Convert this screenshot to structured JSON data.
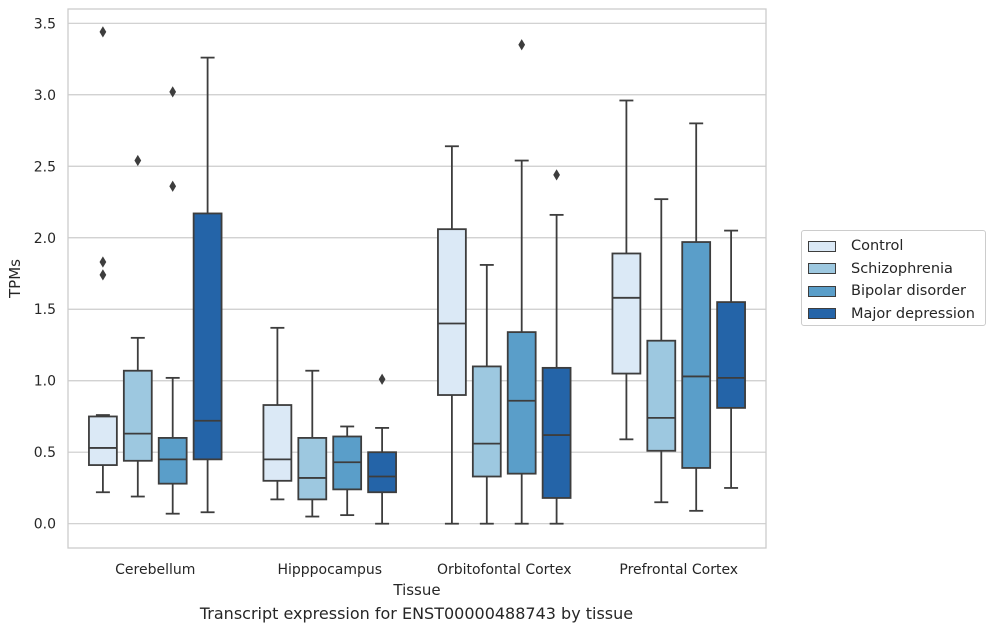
{
  "caption": "Transcript expression for ENST00000488743 by tissue",
  "chart_data": {
    "type": "boxplot",
    "xlabel": "Tissue",
    "ylabel": "TPMs",
    "ylim": [
      -0.17,
      3.6
    ],
    "yticks": [
      "0.0",
      "0.5",
      "1.0",
      "1.5",
      "2.0",
      "2.5",
      "3.0",
      "3.5"
    ],
    "grid": "horizontal",
    "legend_position": "right",
    "categories": [
      "Cerebellum",
      "Hipppocampus",
      "Orbitofontal Cortex",
      "Prefrontal Cortex"
    ],
    "series": [
      {
        "name": "Control",
        "color": "#dbe9f6",
        "boxes": [
          {
            "whislo": 0.22,
            "q1": 0.41,
            "med": 0.53,
            "q3": 0.75,
            "whishi": 0.76,
            "fliers": [
              1.74,
              1.83,
              3.44
            ]
          },
          {
            "whislo": 0.17,
            "q1": 0.3,
            "med": 0.45,
            "q3": 0.83,
            "whishi": 1.37,
            "fliers": []
          },
          {
            "whislo": 0.0,
            "q1": 0.9,
            "med": 1.4,
            "q3": 2.06,
            "whishi": 2.64,
            "fliers": []
          },
          {
            "whislo": 0.59,
            "q1": 1.05,
            "med": 1.58,
            "q3": 1.89,
            "whishi": 2.96,
            "fliers": []
          }
        ]
      },
      {
        "name": "Schizophrenia",
        "color": "#9dc8e0",
        "boxes": [
          {
            "whislo": 0.19,
            "q1": 0.44,
            "med": 0.63,
            "q3": 1.07,
            "whishi": 1.3,
            "fliers": [
              2.54
            ]
          },
          {
            "whislo": 0.05,
            "q1": 0.17,
            "med": 0.32,
            "q3": 0.6,
            "whishi": 1.07,
            "fliers": []
          },
          {
            "whislo": 0.0,
            "q1": 0.33,
            "med": 0.56,
            "q3": 1.1,
            "whishi": 1.81,
            "fliers": []
          },
          {
            "whislo": 0.15,
            "q1": 0.51,
            "med": 0.74,
            "q3": 1.28,
            "whishi": 2.27,
            "fliers": []
          }
        ]
      },
      {
        "name": "Bipolar disorder",
        "color": "#5a9ec9",
        "boxes": [
          {
            "whislo": 0.07,
            "q1": 0.28,
            "med": 0.45,
            "q3": 0.6,
            "whishi": 1.02,
            "fliers": [
              2.36,
              3.02
            ]
          },
          {
            "whislo": 0.06,
            "q1": 0.24,
            "med": 0.43,
            "q3": 0.61,
            "whishi": 0.68,
            "fliers": []
          },
          {
            "whislo": 0.0,
            "q1": 0.35,
            "med": 0.86,
            "q3": 1.34,
            "whishi": 2.54,
            "fliers": [
              3.35
            ]
          },
          {
            "whislo": 0.09,
            "q1": 0.39,
            "med": 1.03,
            "q3": 1.97,
            "whishi": 2.8,
            "fliers": []
          }
        ]
      },
      {
        "name": "Major depression",
        "color": "#2464a8",
        "boxes": [
          {
            "whislo": 0.08,
            "q1": 0.45,
            "med": 0.72,
            "q3": 2.17,
            "whishi": 3.26,
            "fliers": []
          },
          {
            "whislo": 0.0,
            "q1": 0.22,
            "med": 0.33,
            "q3": 0.5,
            "whishi": 0.67,
            "fliers": [
              1.01
            ]
          },
          {
            "whislo": 0.0,
            "q1": 0.18,
            "med": 0.62,
            "q3": 1.09,
            "whishi": 2.16,
            "fliers": [
              2.44
            ]
          },
          {
            "whislo": 0.25,
            "q1": 0.81,
            "med": 1.02,
            "q3": 1.55,
            "whishi": 2.05,
            "fliers": []
          }
        ]
      }
    ]
  }
}
